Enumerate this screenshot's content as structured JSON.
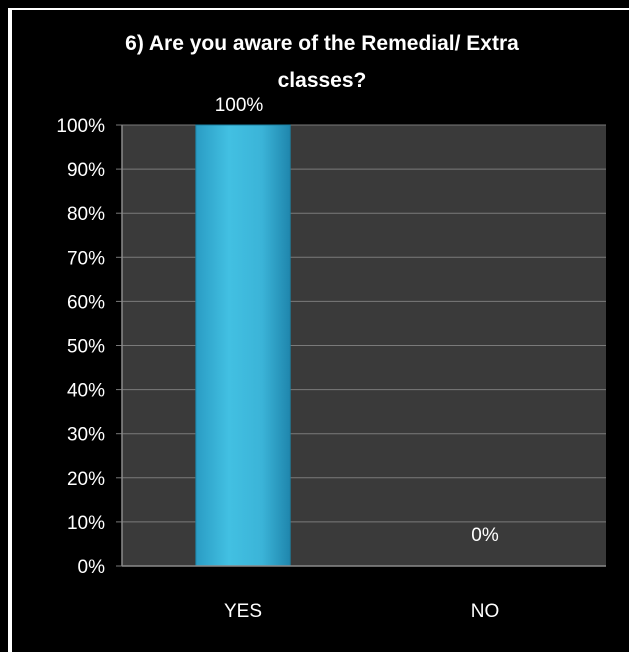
{
  "chart_data": {
    "type": "bar",
    "title_lines": [
      "6) Are you aware of the Remedial/ Extra",
      "classes?"
    ],
    "categories": [
      "YES",
      "NO"
    ],
    "values": [
      100,
      0
    ],
    "data_labels": [
      "100%",
      "0%"
    ],
    "ylim": [
      0,
      100
    ],
    "yticks": [
      0,
      10,
      20,
      30,
      40,
      50,
      60,
      70,
      80,
      90,
      100
    ],
    "ytick_labels": [
      "0%",
      "10%",
      "20%",
      "30%",
      "40%",
      "50%",
      "60%",
      "70%",
      "80%",
      "90%",
      "100%"
    ],
    "grid": true,
    "legend": "none",
    "colors": {
      "background": "#000000",
      "plot_area": "#3a3a3a",
      "bar_fill": "#3cb8dc",
      "bar_dark": "#1e7fa0",
      "gridline": "#7a7a7a",
      "text": "#ffffff",
      "frame": "#ffffff"
    }
  }
}
